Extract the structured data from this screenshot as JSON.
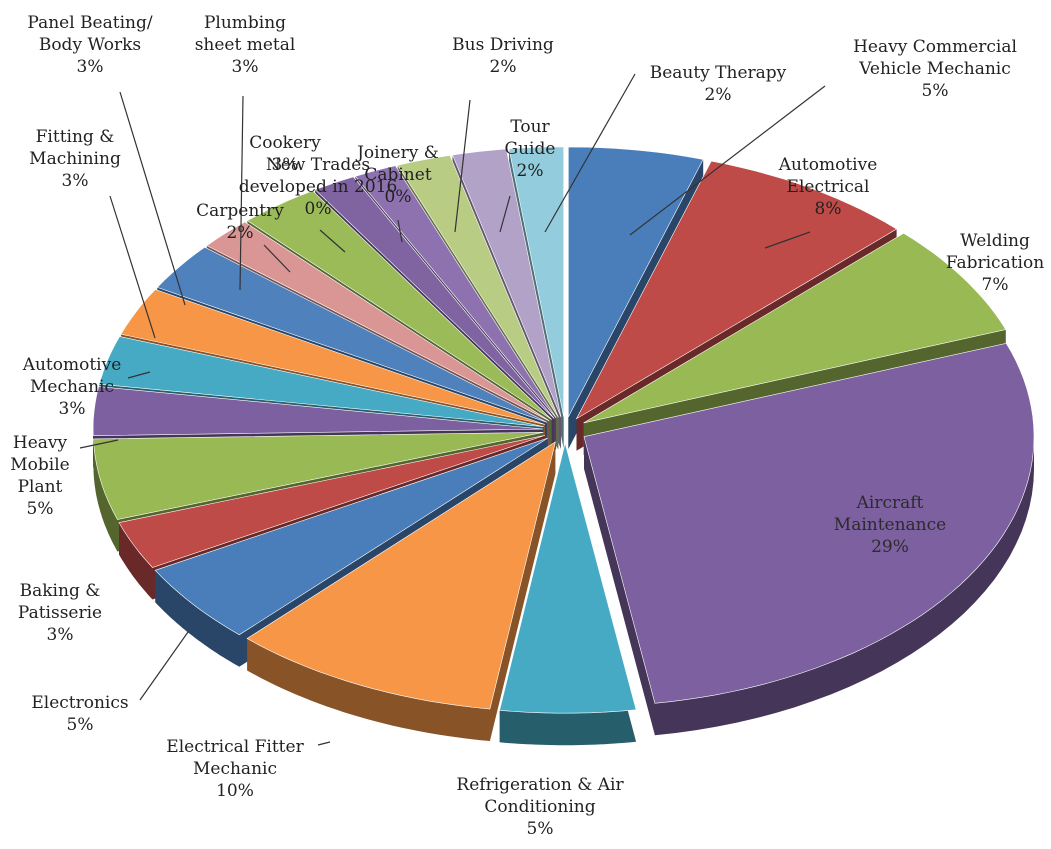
{
  "chart_data": {
    "type": "pie",
    "style": "exploded-3d",
    "legend": "none",
    "slices": [
      {
        "label": "Heavy Commercial\nVehicle Mechanic",
        "value_label": "5%",
        "value": 5,
        "color": "#4a7ebb"
      },
      {
        "label": "Automotive\nElectrical",
        "value_label": "8%",
        "value": 8,
        "color": "#be4b48"
      },
      {
        "label": "Welding\nFabrication",
        "value_label": "7%",
        "value": 7,
        "color": "#98b954"
      },
      {
        "label": "Aircraft\nMaintenance",
        "value_label": "29%",
        "value": 29,
        "color": "#7d60a0"
      },
      {
        "label": "Refrigeration & Air\nConditioning",
        "value_label": "5%",
        "value": 5,
        "color": "#46aac5"
      },
      {
        "label": "Electrical Fitter\nMechanic",
        "value_label": "10%",
        "value": 10,
        "color": "#f79646"
      },
      {
        "label": "Electronics",
        "value_label": "5%",
        "value": 5,
        "color": "#4a7ebb"
      },
      {
        "label": "Baking &\nPatisserie",
        "value_label": "3%",
        "value": 3,
        "color": "#be4b48"
      },
      {
        "label": "Heavy\nMobile\nPlant",
        "value_label": "5%",
        "value": 5,
        "color": "#98b954"
      },
      {
        "label": "Automotive\nMechanic",
        "value_label": "3%",
        "value": 3,
        "color": "#7d60a0"
      },
      {
        "label": "Fitting &\nMachining",
        "value_label": "3%",
        "value": 3,
        "color": "#46aac5"
      },
      {
        "label": "Panel Beating/\nBody Works",
        "value_label": "3%",
        "value": 3,
        "color": "#f79646"
      },
      {
        "label": "Plumbing\nsheet metal",
        "value_label": "3%",
        "value": 3,
        "color": "#4f81bd"
      },
      {
        "label": "Carpentry",
        "value_label": "2%",
        "value": 2,
        "color": "#d99694"
      },
      {
        "label": "Cookery",
        "value_label": "3%",
        "value": 3,
        "color": "#9bbb59"
      },
      {
        "label": "New Trades\ndeveloped in 2016",
        "value_label": "0%",
        "value": 0,
        "color": "#8064a2"
      },
      {
        "label": "Joinery &\nCabinet",
        "value_label": "0%",
        "value": 0,
        "color": "#8e72b0"
      },
      {
        "label": "Bus Driving",
        "value_label": "2%",
        "value": 2,
        "color": "#b8cc84"
      },
      {
        "label": "Tour\nGuide",
        "value_label": "2%",
        "value": 2,
        "color": "#b3a2c7"
      },
      {
        "label": "Beauty Therapy",
        "value_label": "2%",
        "value": 2,
        "color": "#93cddd"
      }
    ]
  }
}
